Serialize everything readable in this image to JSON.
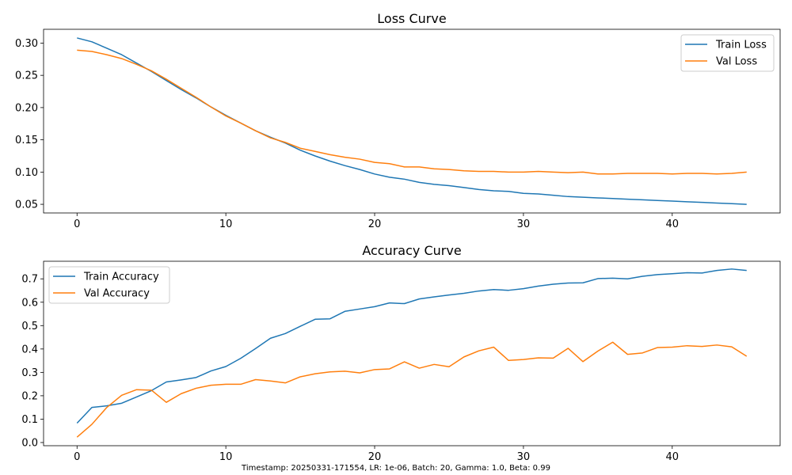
{
  "footer": "Timestamp: 20250331-171554, LR: 1e-06, Batch: 20, Gamma: 1.0, Beta: 0.99",
  "colors": {
    "train": "#1f77b4",
    "val": "#ff7f0e"
  },
  "chart_data": [
    {
      "type": "line",
      "title": "Loss Curve",
      "xlabel": "",
      "ylabel": "",
      "xlim": [
        -2.25,
        47.25
      ],
      "ylim": [
        0.0366,
        0.3214
      ],
      "xticks": [
        0,
        10,
        20,
        30,
        40
      ],
      "yticks": [
        0.05,
        0.1,
        0.15,
        0.2,
        0.25,
        0.3
      ],
      "ytick_labels": [
        "0.05",
        "0.10",
        "0.15",
        "0.20",
        "0.25",
        "0.30"
      ],
      "legend": "top-right",
      "grid": false,
      "x": [
        0,
        1,
        2,
        3,
        4,
        5,
        6,
        7,
        8,
        9,
        10,
        11,
        12,
        13,
        14,
        15,
        16,
        17,
        18,
        19,
        20,
        21,
        22,
        23,
        24,
        25,
        26,
        27,
        28,
        29,
        30,
        31,
        32,
        33,
        34,
        35,
        36,
        37,
        38,
        39,
        40,
        41,
        42,
        43,
        44,
        45
      ],
      "series": [
        {
          "name": "Train Loss",
          "color": "#1f77b4",
          "values": [
            0.308,
            0.302,
            0.292,
            0.282,
            0.269,
            0.256,
            0.242,
            0.228,
            0.215,
            0.201,
            0.188,
            0.176,
            0.164,
            0.154,
            0.145,
            0.134,
            0.125,
            0.117,
            0.11,
            0.104,
            0.097,
            0.092,
            0.089,
            0.084,
            0.081,
            0.079,
            0.076,
            0.073,
            0.071,
            0.07,
            0.067,
            0.066,
            0.064,
            0.062,
            0.061,
            0.06,
            0.059,
            0.058,
            0.057,
            0.056,
            0.055,
            0.054,
            0.053,
            0.052,
            0.051,
            0.05
          ]
        },
        {
          "name": "Val Loss",
          "color": "#ff7f0e",
          "values": [
            0.289,
            0.287,
            0.282,
            0.276,
            0.267,
            0.257,
            0.244,
            0.23,
            0.216,
            0.201,
            0.187,
            0.176,
            0.164,
            0.153,
            0.146,
            0.137,
            0.132,
            0.127,
            0.123,
            0.12,
            0.115,
            0.113,
            0.108,
            0.108,
            0.105,
            0.104,
            0.102,
            0.101,
            0.101,
            0.1,
            0.1,
            0.101,
            0.1,
            0.099,
            0.1,
            0.097,
            0.097,
            0.098,
            0.098,
            0.098,
            0.097,
            0.098,
            0.098,
            0.097,
            0.098,
            0.1
          ]
        }
      ]
    },
    {
      "type": "line",
      "title": "Accuracy Curve",
      "xlabel": "",
      "ylabel": "",
      "xlim": [
        -2.25,
        47.25
      ],
      "ylim": [
        -0.0136,
        0.7752
      ],
      "xticks": [
        0,
        10,
        20,
        30,
        40
      ],
      "yticks": [
        0.0,
        0.1,
        0.2,
        0.3,
        0.4,
        0.5,
        0.6,
        0.7
      ],
      "ytick_labels": [
        "0.0",
        "0.1",
        "0.2",
        "0.3",
        "0.4",
        "0.5",
        "0.6",
        "0.7"
      ],
      "legend": "top-left",
      "grid": false,
      "x": [
        0,
        1,
        2,
        3,
        4,
        5,
        6,
        7,
        8,
        9,
        10,
        11,
        12,
        13,
        14,
        15,
        16,
        17,
        18,
        19,
        20,
        21,
        22,
        23,
        24,
        25,
        26,
        27,
        28,
        29,
        30,
        31,
        32,
        33,
        34,
        35,
        36,
        37,
        38,
        39,
        40,
        41,
        42,
        43,
        44,
        45
      ],
      "series": [
        {
          "name": "Train Accuracy",
          "color": "#1f77b4",
          "values": [
            0.083,
            0.15,
            0.157,
            0.168,
            0.195,
            0.222,
            0.259,
            0.268,
            0.278,
            0.306,
            0.325,
            0.36,
            0.402,
            0.446,
            0.466,
            0.497,
            0.527,
            0.529,
            0.561,
            0.571,
            0.581,
            0.597,
            0.594,
            0.614,
            0.623,
            0.631,
            0.638,
            0.648,
            0.654,
            0.651,
            0.658,
            0.669,
            0.677,
            0.682,
            0.683,
            0.701,
            0.703,
            0.7,
            0.711,
            0.718,
            0.722,
            0.726,
            0.725,
            0.736,
            0.742,
            0.736
          ]
        },
        {
          "name": "Val Accuracy",
          "color": "#ff7f0e",
          "values": [
            0.023,
            0.078,
            0.15,
            0.202,
            0.226,
            0.224,
            0.172,
            0.209,
            0.232,
            0.245,
            0.249,
            0.249,
            0.269,
            0.263,
            0.255,
            0.281,
            0.294,
            0.302,
            0.305,
            0.298,
            0.312,
            0.315,
            0.345,
            0.318,
            0.334,
            0.324,
            0.366,
            0.392,
            0.408,
            0.351,
            0.355,
            0.362,
            0.361,
            0.403,
            0.346,
            0.391,
            0.429,
            0.377,
            0.383,
            0.406,
            0.408,
            0.414,
            0.411,
            0.417,
            0.409,
            0.369
          ]
        }
      ]
    }
  ]
}
